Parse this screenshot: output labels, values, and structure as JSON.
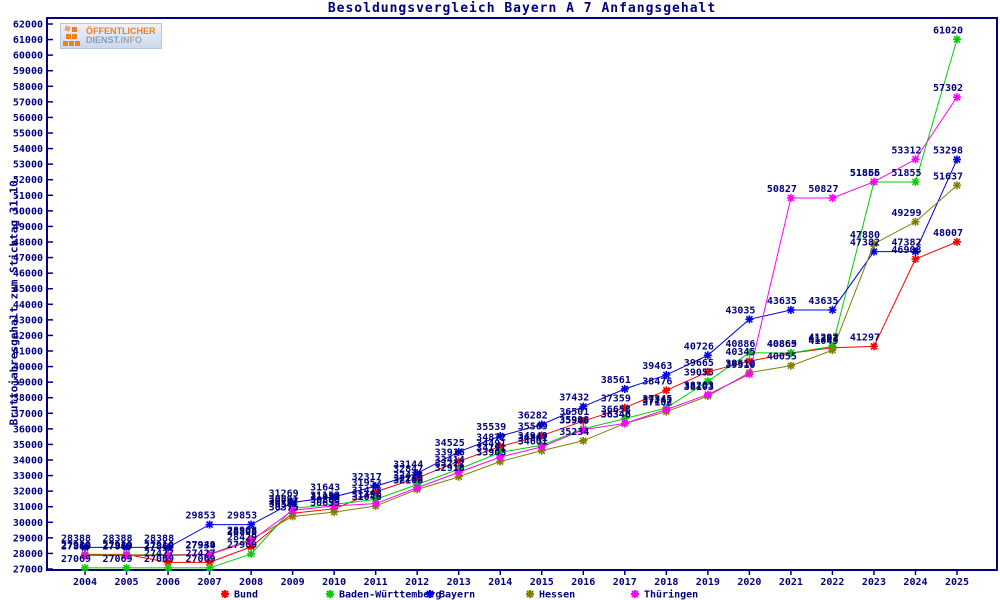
{
  "title": "Besoldungsvergleich Bayern A 7 Anfangsgehalt",
  "y_axis_title": "Bruttojahresgehalt zum Stichtag 31.10.",
  "logo": {
    "line1": "ÖFFENTLICHER",
    "line2a": "DIENST.",
    "line2b": "INFO"
  },
  "colors": {
    "frame_and_text": "#000080",
    "background": "#ffffff",
    "bund": "#ff0000",
    "baden_wuerttemberg": "#00d000",
    "bayern": "#0000e8",
    "hessen": "#808000",
    "thueringen": "#ff00ff"
  },
  "chart_data": {
    "type": "line",
    "title": "Besoldungsvergleich Bayern A 7 Anfangsgehalt",
    "xlabel": "",
    "ylabel": "Bruttojahresgehalt zum Stichtag 31.10.",
    "x": [
      2004,
      2005,
      2006,
      2007,
      2008,
      2009,
      2010,
      2011,
      2012,
      2013,
      2014,
      2015,
      2016,
      2017,
      2018,
      2019,
      2020,
      2021,
      2022,
      2023,
      2024,
      2025
    ],
    "ylim": [
      27000,
      62000
    ],
    "ytick_step": 1000,
    "grid": false,
    "legend_position": "bottom",
    "point_labels": true,
    "series": [
      {
        "name": "Bund",
        "color": "#ff0000",
        "values": [
          27939,
          27939,
          27427,
          27427,
          28429,
          30581,
          30865,
          31953,
          32847,
          33916,
          34872,
          35569,
          36501,
          37359,
          38476,
          39665,
          40345,
          40865,
          41207,
          41297,
          46908,
          48007
        ]
      },
      {
        "name": "Baden-Württemberg",
        "color": "#00d000",
        "values": [
          27069,
          27069,
          27069,
          27069,
          27969,
          30891,
          31153,
          31473,
          32428,
          33414,
          34491,
          34949,
          35998,
          36658,
          37345,
          39055,
          40886,
          40869,
          41297,
          51855,
          51855,
          61020
        ]
      },
      {
        "name": "Bayern",
        "color": "#0000e8",
        "values": [
          28388,
          28388,
          28388,
          29853,
          29853,
          31269,
          31643,
          32317,
          33144,
          34525,
          35539,
          36282,
          37432,
          38561,
          39463,
          40726,
          43035,
          43635,
          43635,
          47382,
          47382,
          53298
        ]
      },
      {
        "name": "Hessen",
        "color": "#808000",
        "values": [
          27919,
          27919,
          27919,
          27949,
          28908,
          30375,
          30655,
          31046,
          32108,
          32918,
          33903,
          34601,
          35234,
          36346,
          37102,
          38103,
          39610,
          40055,
          41049,
          47880,
          49299,
          51637
        ]
      },
      {
        "name": "Thüringen",
        "color": "#ff00ff",
        "values": [
          27869,
          27869,
          27869,
          27934,
          28808,
          30767,
          31053,
          31196,
          32218,
          33212,
          34191,
          34841,
          35948,
          36348,
          37242,
          38203,
          39510,
          50827,
          50827,
          51866,
          53312,
          57302
        ]
      }
    ]
  }
}
